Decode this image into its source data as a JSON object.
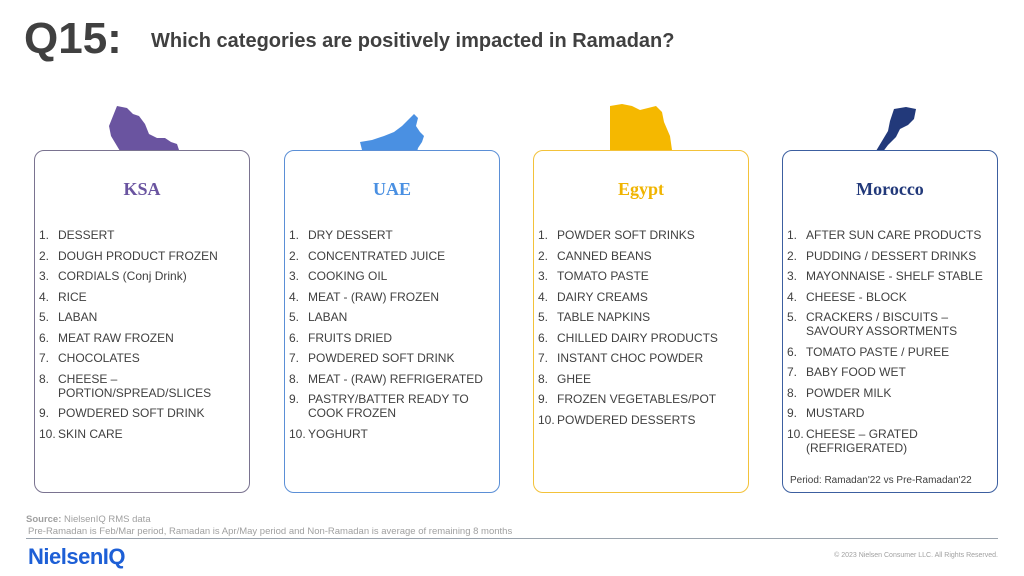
{
  "header": {
    "question_number": "Q15:",
    "question_text": "Which categories are positively impacted in Ramadan?"
  },
  "colors": {
    "ksa": "#6a54a0",
    "uae": "#4a90e2",
    "egypt": "#f0b400",
    "morocco": "#22397a"
  },
  "countries": [
    {
      "name": "KSA",
      "map_icon": "saudi-arabia-map-icon",
      "items": [
        {
          "num": "1.",
          "text": "DESSERT"
        },
        {
          "num": "2.",
          "text": "DOUGH PRODUCT FROZEN"
        },
        {
          "num": "3.",
          "text": "CORDIALS (Conj Drink)"
        },
        {
          "num": "4.",
          "text": "RICE"
        },
        {
          "num": "5.",
          "text": "LABAN"
        },
        {
          "num": "6.",
          "text": "MEAT RAW FROZEN"
        },
        {
          "num": "7.",
          "text": "CHOCOLATES"
        },
        {
          "num": "8.",
          "text": "CHEESE – PORTION/SPREAD/SLICES"
        },
        {
          "num": "9.",
          "text": "POWDERED SOFT DRINK"
        },
        {
          "num": "10.",
          "text": "SKIN CARE"
        }
      ]
    },
    {
      "name": "UAE",
      "map_icon": "uae-map-icon",
      "items": [
        {
          "num": "1.",
          "text": "DRY DESSERT"
        },
        {
          "num": "2.",
          "text": "CONCENTRATED JUICE"
        },
        {
          "num": "3.",
          "text": "COOKING OIL"
        },
        {
          "num": "4.",
          "text": "MEAT - (RAW) FROZEN"
        },
        {
          "num": "5.",
          "text": "LABAN"
        },
        {
          "num": "6.",
          "text": "FRUITS DRIED"
        },
        {
          "num": "7.",
          "text": "POWDERED SOFT DRINK"
        },
        {
          "num": "8.",
          "text": "MEAT - (RAW) REFRIGERATED"
        },
        {
          "num": "9.",
          "text": "PASTRY/BATTER READY TO COOK FROZEN"
        },
        {
          "num": "10.",
          "text": "YOGHURT"
        }
      ]
    },
    {
      "name": "Egypt",
      "map_icon": "egypt-map-icon",
      "items": [
        {
          "num": "1.",
          "text": "POWDER SOFT DRINKS"
        },
        {
          "num": "2.",
          "text": "CANNED BEANS"
        },
        {
          "num": "3.",
          "text": "TOMATO PASTE"
        },
        {
          "num": "4.",
          "text": "DAIRY CREAMS"
        },
        {
          "num": "5.",
          "text": "TABLE NAPKINS"
        },
        {
          "num": "6.",
          "text": "CHILLED DAIRY PRODUCTS"
        },
        {
          "num": "7.",
          "text": "INSTANT CHOC POWDER"
        },
        {
          "num": "8.",
          "text": "GHEE"
        },
        {
          "num": "9.",
          "text": "FROZEN VEGETABLES/POT"
        },
        {
          "num": "10.",
          "text": "POWDERED DESSERTS"
        }
      ]
    },
    {
      "name": "Morocco",
      "map_icon": "morocco-map-icon",
      "items": [
        {
          "num": "1.",
          "text": "AFTER SUN CARE PRODUCTS"
        },
        {
          "num": "2.",
          "text": "PUDDING / DESSERT DRINKS"
        },
        {
          "num": "3.",
          "text": "MAYONNAISE  - SHELF STABLE"
        },
        {
          "num": "4.",
          "text": "CHEESE - BLOCK"
        },
        {
          "num": "5.",
          "text": "CRACKERS / BISCUITS – SAVOURY ASSORTMENTS"
        },
        {
          "num": "6.",
          "text": "TOMATO PASTE / PUREE"
        },
        {
          "num": "7.",
          "text": "BABY FOOD WET"
        },
        {
          "num": "8.",
          "text": "POWDER MILK"
        },
        {
          "num": "9.",
          "text": "MUSTARD"
        },
        {
          "num": "10.",
          "text": "CHEESE – GRATED (REFRIGERATED)"
        }
      ],
      "period": "Period: Ramadan'22 vs Pre-Ramadan'22"
    }
  ],
  "footer": {
    "source_label": "Source:",
    "source_value": " NielsenIQ RMS data",
    "note": "Pre-Ramadan  is Feb/Mar period, Ramadan  is Apr/May period and Non-Ramadan  is average  of remaining  8 months",
    "logo": "NielsenIQ",
    "copyright": "© 2023 Nielsen Consumer LLC. All Rights Reserved."
  }
}
